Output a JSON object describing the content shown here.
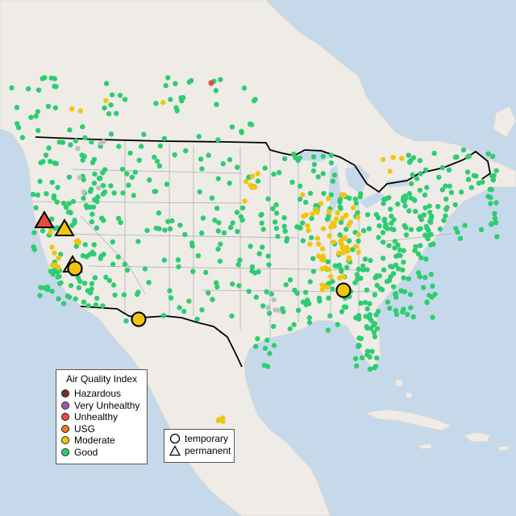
{
  "legend_aqi": {
    "title": "Air Quality Index",
    "items": [
      {
        "label": "Hazardous",
        "color": "#7e2a2a"
      },
      {
        "label": "Very Unhealthy",
        "color": "#9b59b6"
      },
      {
        "label": "Unhealthy",
        "color": "#e74c3c"
      },
      {
        "label": "USG",
        "color": "#e67e22"
      },
      {
        "label": "Moderate",
        "color": "#f1c40f"
      },
      {
        "label": "Good",
        "color": "#2ecc71"
      }
    ]
  },
  "legend_type": {
    "items": [
      {
        "label": "temporary",
        "icon": "circle-icon"
      },
      {
        "label": "permanent",
        "icon": "triangle-icon"
      }
    ]
  },
  "colors": {
    "water": "#c6d9ea",
    "land": "#efece8",
    "good": "#2ecc71",
    "moderate": "#f1c40f",
    "unhealthy": "#e74c3c",
    "missing": "#bfbfbf"
  }
}
